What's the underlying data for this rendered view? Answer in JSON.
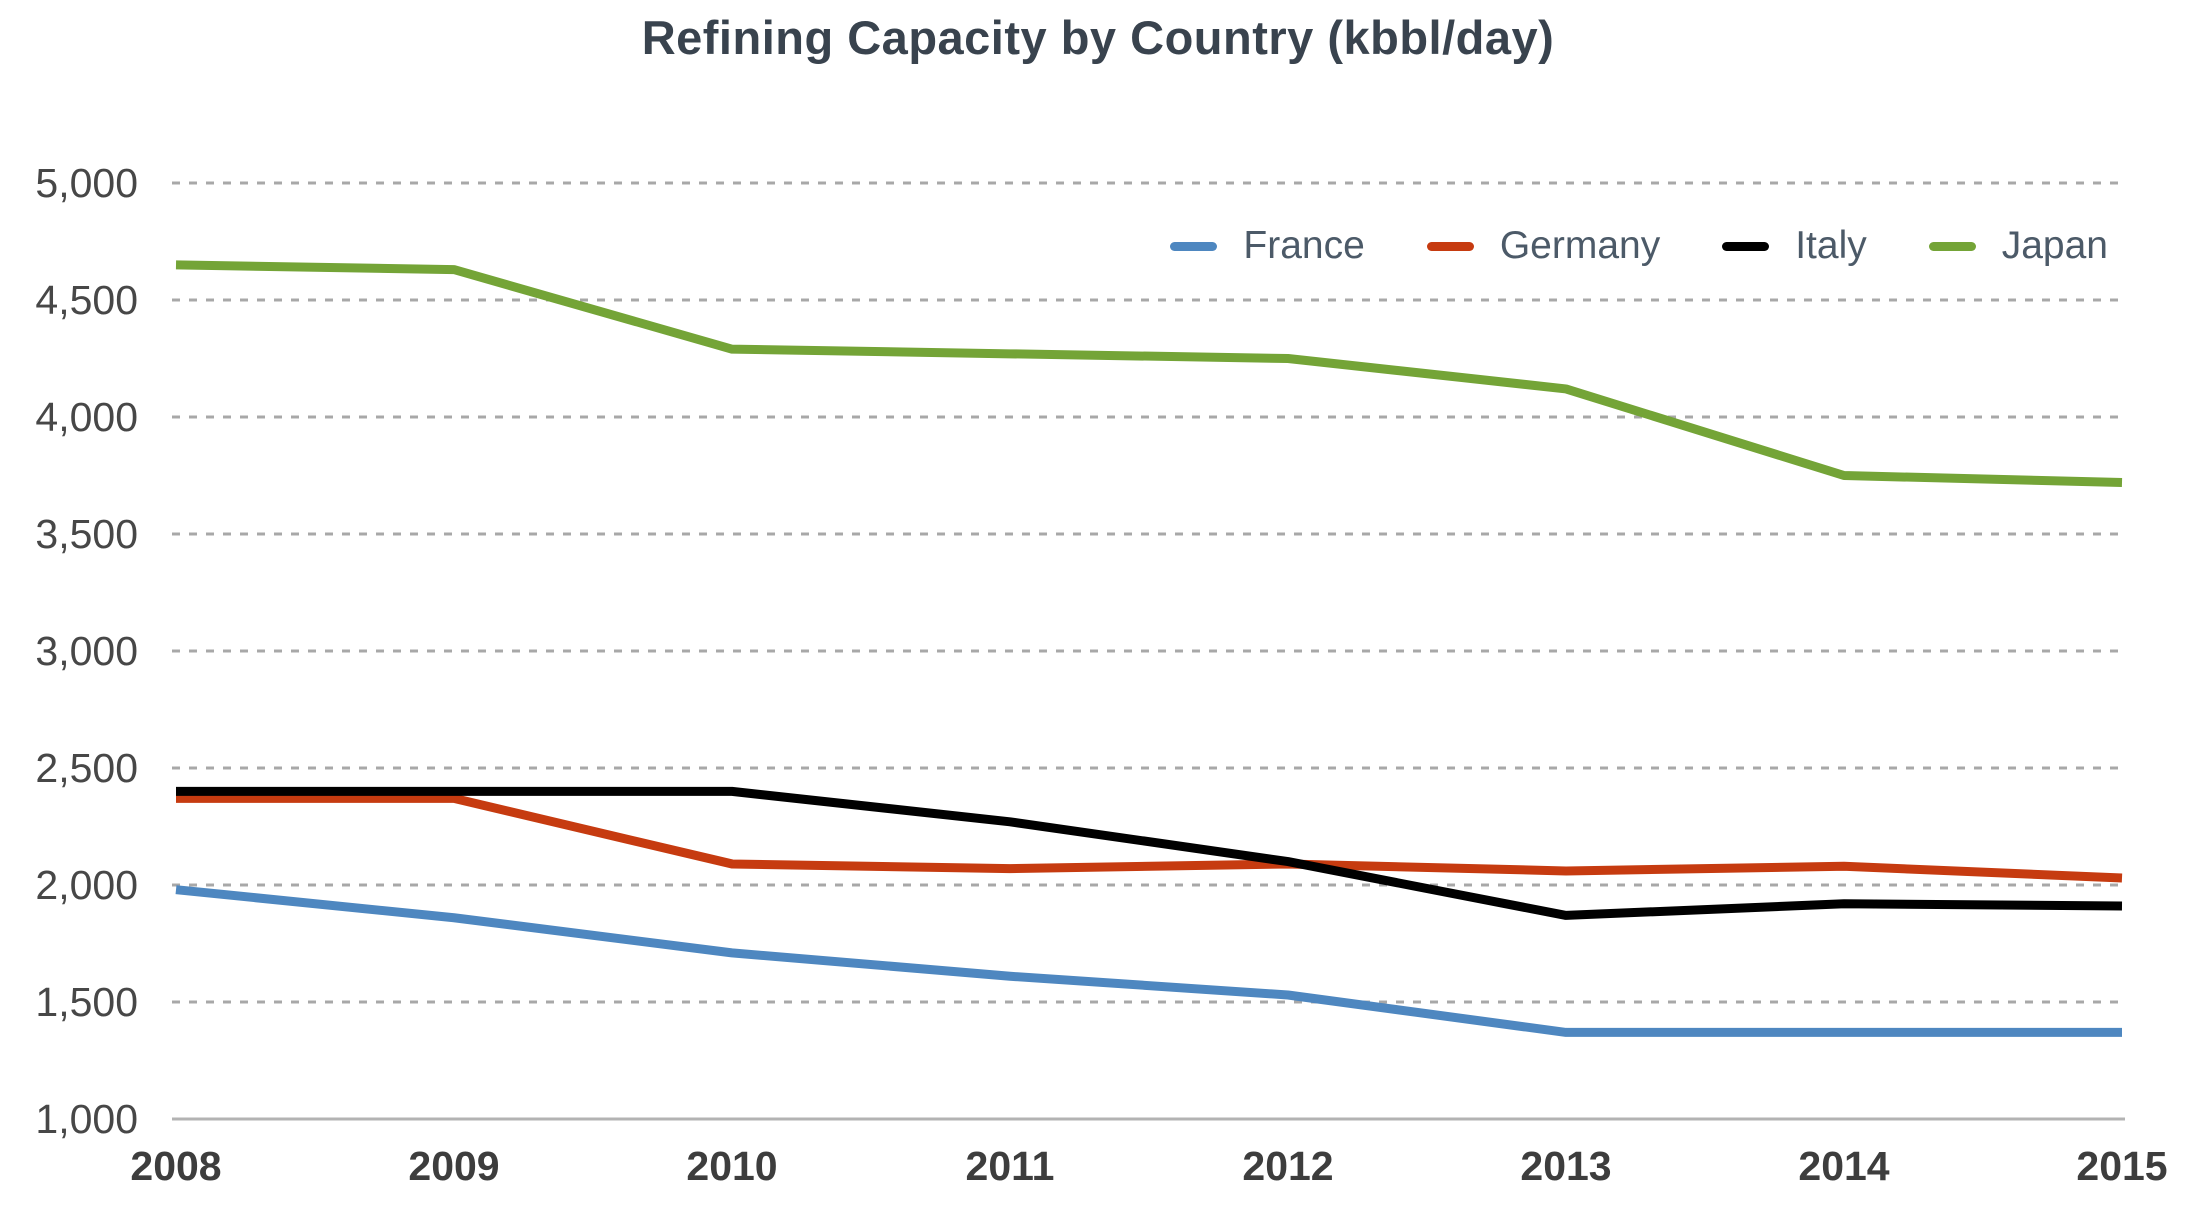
{
  "chart_data": {
    "type": "line",
    "title": "Refining Capacity by Country (kbbl/day)",
    "units": "kbbl/day",
    "x": [
      2008,
      2009,
      2010,
      2011,
      2012,
      2013,
      2014,
      2015
    ],
    "x_tick_labels": [
      "2008",
      "2009",
      "2010",
      "2011",
      "2012",
      "2013",
      "2014",
      "2015"
    ],
    "y_tick_labels": [
      "1,000",
      "1,500",
      "2,000",
      "2,500",
      "3,000",
      "3,500",
      "4,000",
      "4,500",
      "5,000"
    ],
    "ylim": [
      1000,
      5000
    ],
    "ytick_step": 500,
    "grid": "horizontal-dotted",
    "legend_position": "top-right-inside",
    "series": [
      {
        "name": "France",
        "color": "#4e87c0",
        "values": [
          1980,
          1860,
          1710,
          1610,
          1530,
          1370,
          1370,
          1370
        ]
      },
      {
        "name": "Germany",
        "color": "#c63b10",
        "values": [
          2370,
          2370,
          2090,
          2070,
          2090,
          2060,
          2080,
          2030
        ]
      },
      {
        "name": "Italy",
        "color": "#000000",
        "values": [
          2400,
          2400,
          2400,
          2270,
          2100,
          1870,
          1920,
          1910
        ]
      },
      {
        "name": "Japan",
        "color": "#74a437",
        "values": [
          4650,
          4630,
          4290,
          4270,
          4250,
          4120,
          3750,
          3720
        ]
      }
    ]
  },
  "theme": {
    "title_color": "#39434e",
    "axis_tick_color": "#474747",
    "legend_text_color": "#4c5a68",
    "gridline_color": "#a8a8a8",
    "baseline_color": "#b3b3b3",
    "background": "#ffffff"
  }
}
